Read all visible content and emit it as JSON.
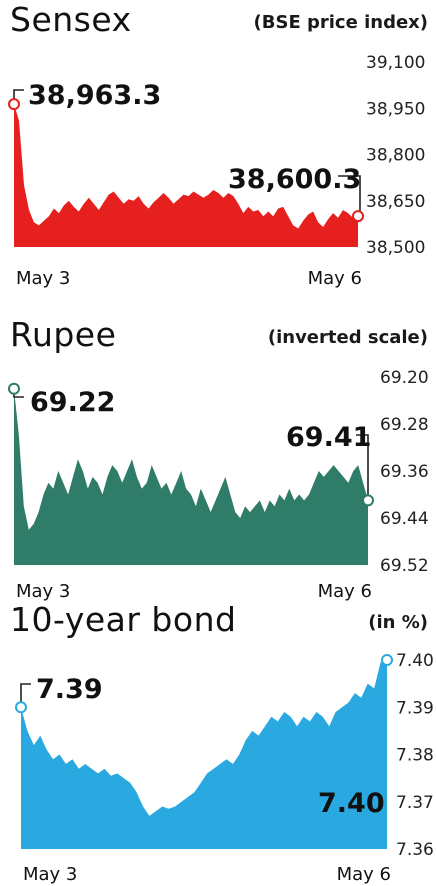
{
  "chart_data": [
    {
      "type": "area",
      "title": "Sensex",
      "subtitle": "(BSE price index)",
      "color": "#e5201e",
      "yticks": [
        "39,100",
        "38,950",
        "38,800",
        "38,650",
        "38,500"
      ],
      "ylim": [
        38500,
        39100
      ],
      "inverted": false,
      "x_start_label": "May 3",
      "x_end_label": "May 6",
      "start_value": 38963.3,
      "start_label": "38,963.3",
      "end_value": 38600.3,
      "end_label": "38,600.3",
      "values": [
        38963.3,
        38910,
        38700,
        38620,
        38580,
        38570,
        38585,
        38600,
        38625,
        38610,
        38635,
        38650,
        38630,
        38615,
        38640,
        38660,
        38640,
        38620,
        38645,
        38670,
        38680,
        38660,
        38640,
        38655,
        38650,
        38665,
        38640,
        38625,
        38645,
        38660,
        38675,
        38660,
        38640,
        38655,
        38670,
        38665,
        38680,
        38670,
        38660,
        38670,
        38685,
        38675,
        38660,
        38675,
        38665,
        38640,
        38610,
        38630,
        38615,
        38620,
        38600,
        38615,
        38600,
        38625,
        38630,
        38600,
        38570,
        38560,
        38585,
        38605,
        38615,
        38580,
        38565,
        38590,
        38610,
        38595,
        38620,
        38610,
        38595,
        38600.3
      ]
    },
    {
      "type": "area",
      "title": "Rupee",
      "subtitle": "(inverted scale)",
      "color": "#2f7c68",
      "yticks": [
        "69.20",
        "69.28",
        "69.36",
        "69.44",
        "69.52"
      ],
      "ylim": [
        69.52,
        69.2
      ],
      "inverted": true,
      "x_start_label": "May 3",
      "x_end_label": "May 6",
      "start_value": 69.22,
      "start_label": "69.22",
      "end_value": 69.41,
      "end_label": "69.41",
      "values": [
        69.22,
        69.3,
        69.42,
        69.46,
        69.45,
        69.43,
        69.4,
        69.38,
        69.39,
        69.36,
        69.38,
        69.4,
        69.37,
        69.34,
        69.36,
        69.39,
        69.37,
        69.38,
        69.4,
        69.37,
        69.35,
        69.36,
        69.38,
        69.36,
        69.34,
        69.37,
        69.39,
        69.38,
        69.35,
        69.37,
        69.39,
        69.38,
        69.4,
        69.38,
        69.36,
        69.39,
        69.4,
        69.42,
        69.39,
        69.41,
        69.43,
        69.41,
        69.39,
        69.37,
        69.4,
        69.43,
        69.44,
        69.42,
        69.43,
        69.42,
        69.41,
        69.43,
        69.41,
        69.42,
        69.4,
        69.41,
        69.39,
        69.41,
        69.4,
        69.41,
        69.4,
        69.38,
        69.36,
        69.37,
        69.36,
        69.35,
        69.36,
        69.37,
        69.38,
        69.36,
        69.35,
        69.38,
        69.41
      ]
    },
    {
      "type": "area",
      "title": "10-year bond",
      "subtitle": "(in %)",
      "color": "#2aa8e0",
      "yticks": [
        "7.40",
        "7.39",
        "7.38",
        "7.37",
        "7.36"
      ],
      "ylim": [
        7.36,
        7.4
      ],
      "inverted": false,
      "x_start_label": "May 3",
      "x_end_label": "May 6",
      "start_value": 7.39,
      "start_label": "7.39",
      "end_value": 7.4,
      "end_label": "7.40",
      "values": [
        7.39,
        7.385,
        7.382,
        7.384,
        7.381,
        7.379,
        7.38,
        7.378,
        7.379,
        7.377,
        7.378,
        7.377,
        7.376,
        7.377,
        7.3755,
        7.376,
        7.375,
        7.374,
        7.372,
        7.369,
        7.367,
        7.368,
        7.369,
        7.3685,
        7.369,
        7.37,
        7.371,
        7.372,
        7.374,
        7.376,
        7.377,
        7.378,
        7.379,
        7.378,
        7.38,
        7.383,
        7.385,
        7.384,
        7.386,
        7.388,
        7.387,
        7.389,
        7.388,
        7.386,
        7.388,
        7.387,
        7.389,
        7.388,
        7.386,
        7.389,
        7.39,
        7.391,
        7.393,
        7.392,
        7.395,
        7.394,
        7.3995,
        7.4
      ]
    }
  ]
}
